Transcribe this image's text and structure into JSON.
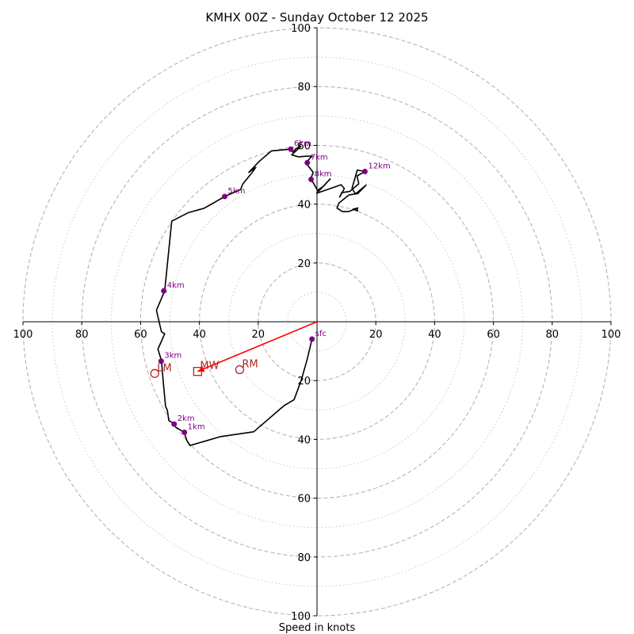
{
  "chart_data": {
    "type": "hodograph",
    "title": "KMHX 00Z - Sunday October 12 2025",
    "xlabel": "Speed in knots",
    "xlim": [
      -100,
      100
    ],
    "ylim": [
      -100,
      100
    ],
    "units": "knots",
    "range_rings_major": [
      20,
      40,
      60,
      80,
      100
    ],
    "range_rings_minor": [
      10,
      30,
      50,
      70,
      90
    ],
    "tick_labels": {
      "x_left": [
        "100",
        "80",
        "60",
        "40",
        "20"
      ],
      "x_right": [
        "20",
        "40",
        "60",
        "80",
        "100"
      ],
      "y_top": [
        "20",
        "40",
        "60",
        "80",
        "100"
      ],
      "y_bottom": [
        "20",
        "40",
        "60",
        "80",
        "100"
      ]
    },
    "trace": {
      "color": "#000000",
      "points": [
        [
          -1.7,
          -5.9
        ],
        [
          -3.4,
          -13
        ],
        [
          -5.4,
          -20
        ],
        [
          -7.8,
          -26.5
        ],
        [
          -11.3,
          -28.6
        ],
        [
          -21.5,
          -37.4
        ],
        [
          -33,
          -39.1
        ],
        [
          -43.2,
          -42.1
        ],
        [
          -44.2,
          -40.5
        ],
        [
          -45.2,
          -37.6
        ],
        [
          -48,
          -35.9
        ],
        [
          -48.5,
          -34.7
        ],
        [
          -50.4,
          -33.6
        ],
        [
          -50.9,
          -30.1
        ],
        [
          -51.5,
          -28.8
        ],
        [
          -52.2,
          -21.3
        ],
        [
          -52.9,
          -13.2
        ],
        [
          -54.1,
          -9.3
        ],
        [
          -51.8,
          -4.1
        ],
        [
          -52.9,
          -3.4
        ],
        [
          -54.6,
          3.9
        ],
        [
          -51.8,
          10.5
        ],
        [
          -49.4,
          34.2
        ],
        [
          -47.5,
          35.2
        ],
        [
          -43.8,
          37.1
        ],
        [
          -38.4,
          38.6
        ],
        [
          -35.4,
          40.3
        ],
        [
          -31.4,
          42.6
        ],
        [
          -26,
          45
        ],
        [
          -25.2,
          46.9
        ],
        [
          -22.5,
          50.2
        ],
        [
          -20.8,
          52.5
        ],
        [
          -23.2,
          50.8
        ],
        [
          -19.7,
          54.5
        ],
        [
          -15.5,
          58.1
        ],
        [
          -8.9,
          58.7
        ],
        [
          -8.1,
          57.6
        ],
        [
          -7.2,
          58.9
        ],
        [
          -5.5,
          59.6
        ],
        [
          -8.6,
          56.8
        ],
        [
          -6.4,
          56.1
        ],
        [
          -3.6,
          56.3
        ],
        [
          -1.6,
          56.3
        ],
        [
          -2.3,
          55.8
        ],
        [
          -3.7,
          53.9
        ],
        [
          -1.3,
          50.8
        ],
        [
          -2.1,
          48.7
        ],
        [
          0.2,
          44.7
        ],
        [
          2.2,
          46.1
        ],
        [
          4.5,
          48.6
        ],
        [
          -0.1,
          43.7
        ],
        [
          8.2,
          46.6
        ],
        [
          9.3,
          45.3
        ],
        [
          7.7,
          42.4
        ],
        [
          8.4,
          43.9
        ],
        [
          11.1,
          44.3
        ],
        [
          14.2,
          46.9
        ],
        [
          13.6,
          49.6
        ],
        [
          16.3,
          51.1
        ],
        [
          13.7,
          51.6
        ],
        [
          11.9,
          45.3
        ],
        [
          13.1,
          43.5
        ],
        [
          16.7,
          46.5
        ],
        [
          13.9,
          43.6
        ],
        [
          10.8,
          43.1
        ],
        [
          7.5,
          40.4
        ],
        [
          6.8,
          38.7
        ],
        [
          8.6,
          37.5
        ],
        [
          10.8,
          37.5
        ],
        [
          13.9,
          38.7
        ],
        [
          12.3,
          38.3
        ],
        [
          13.8,
          37.7
        ],
        [
          13.6,
          38.6
        ]
      ]
    },
    "height_markers": [
      {
        "label": "sfc",
        "u": -1.7,
        "v": -5.9
      },
      {
        "label": "1km",
        "u": -45.1,
        "v": -37.6
      },
      {
        "label": "2km",
        "u": -48.6,
        "v": -34.8
      },
      {
        "label": "3km",
        "u": -53.0,
        "v": -13.4
      },
      {
        "label": "4km",
        "u": -52.1,
        "v": 10.5
      },
      {
        "label": "5km",
        "u": -31.4,
        "v": 42.6
      },
      {
        "label": "6km",
        "u": -8.9,
        "v": 58.7
      },
      {
        "label": "7km",
        "u": -3.3,
        "v": 54.1
      },
      {
        "label": "8km",
        "u": -2.0,
        "v": 48.4
      },
      {
        "label": "12km",
        "u": 16.3,
        "v": 51.1
      }
    ],
    "storm_motion": [
      {
        "label": "RM",
        "u": -26.3,
        "v": -16.3,
        "symbol": "circle"
      },
      {
        "label": "LM",
        "u": -55.2,
        "v": -17.6,
        "symbol": "circle"
      },
      {
        "label": "MW",
        "u": -40.6,
        "v": -16.9,
        "symbol": "square"
      }
    ],
    "shear_arrow": {
      "from": [
        0,
        0
      ],
      "to": [
        -40.6,
        -16.9
      ],
      "color": "#ff0000"
    }
  }
}
